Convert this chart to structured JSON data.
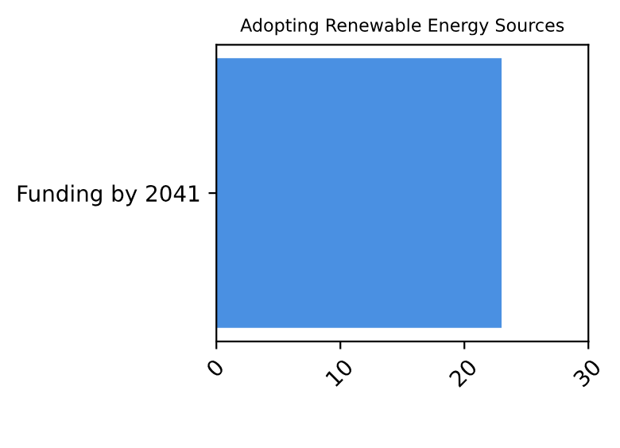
{
  "chart_data": {
    "type": "bar",
    "orientation": "horizontal",
    "title": "Adopting Renewable Energy Sources",
    "categories": [
      "Funding by 2041"
    ],
    "values": [
      23
    ],
    "color": "#4a90e2",
    "xlim": [
      0,
      30
    ],
    "xticks": [
      0,
      10,
      20,
      30
    ],
    "grid": false
  }
}
